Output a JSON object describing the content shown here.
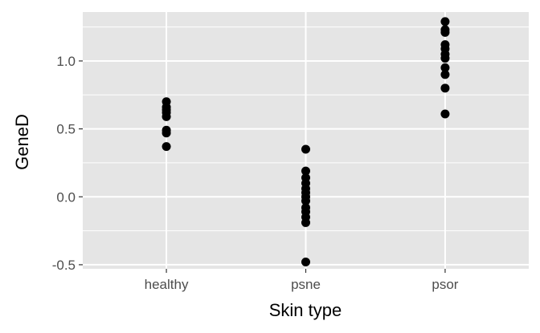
{
  "chart_data": {
    "type": "scatter",
    "title": "",
    "xlabel": "Skin type",
    "ylabel": "GeneD",
    "categories": [
      "healthy",
      "psne",
      "psor"
    ],
    "ylim": [
      -0.53,
      1.36
    ],
    "yticks": [
      -0.5,
      0.0,
      0.5,
      1.0
    ],
    "ytick_labels": [
      "-0.5",
      "0.0",
      "0.5",
      "1.0"
    ],
    "grid": true,
    "legend": "none",
    "points": [
      {
        "x": "healthy",
        "y": 0.7
      },
      {
        "x": "healthy",
        "y": 0.66
      },
      {
        "x": "healthy",
        "y": 0.64
      },
      {
        "x": "healthy",
        "y": 0.62
      },
      {
        "x": "healthy",
        "y": 0.59
      },
      {
        "x": "healthy",
        "y": 0.49
      },
      {
        "x": "healthy",
        "y": 0.47
      },
      {
        "x": "healthy",
        "y": 0.37
      },
      {
        "x": "psne",
        "y": 0.35
      },
      {
        "x": "psne",
        "y": 0.19
      },
      {
        "x": "psne",
        "y": 0.14
      },
      {
        "x": "psne",
        "y": 0.1
      },
      {
        "x": "psne",
        "y": 0.06
      },
      {
        "x": "psne",
        "y": 0.03
      },
      {
        "x": "psne",
        "y": 0.0
      },
      {
        "x": "psne",
        "y": -0.03
      },
      {
        "x": "psne",
        "y": -0.08
      },
      {
        "x": "psne",
        "y": -0.11
      },
      {
        "x": "psne",
        "y": -0.15
      },
      {
        "x": "psne",
        "y": -0.19
      },
      {
        "x": "psne",
        "y": -0.48
      },
      {
        "x": "psor",
        "y": 1.29
      },
      {
        "x": "psor",
        "y": 1.23
      },
      {
        "x": "psor",
        "y": 1.21
      },
      {
        "x": "psor",
        "y": 1.12
      },
      {
        "x": "psor",
        "y": 1.09
      },
      {
        "x": "psor",
        "y": 1.05
      },
      {
        "x": "psor",
        "y": 1.02
      },
      {
        "x": "psor",
        "y": 0.95
      },
      {
        "x": "psor",
        "y": 0.9
      },
      {
        "x": "psor",
        "y": 0.8
      },
      {
        "x": "psor",
        "y": 0.61
      }
    ],
    "colors": {
      "panel": "#e5e5e5",
      "grid": "#ffffff",
      "point": "#000000",
      "tick": "#4d4d4d",
      "text": "#000000"
    }
  }
}
